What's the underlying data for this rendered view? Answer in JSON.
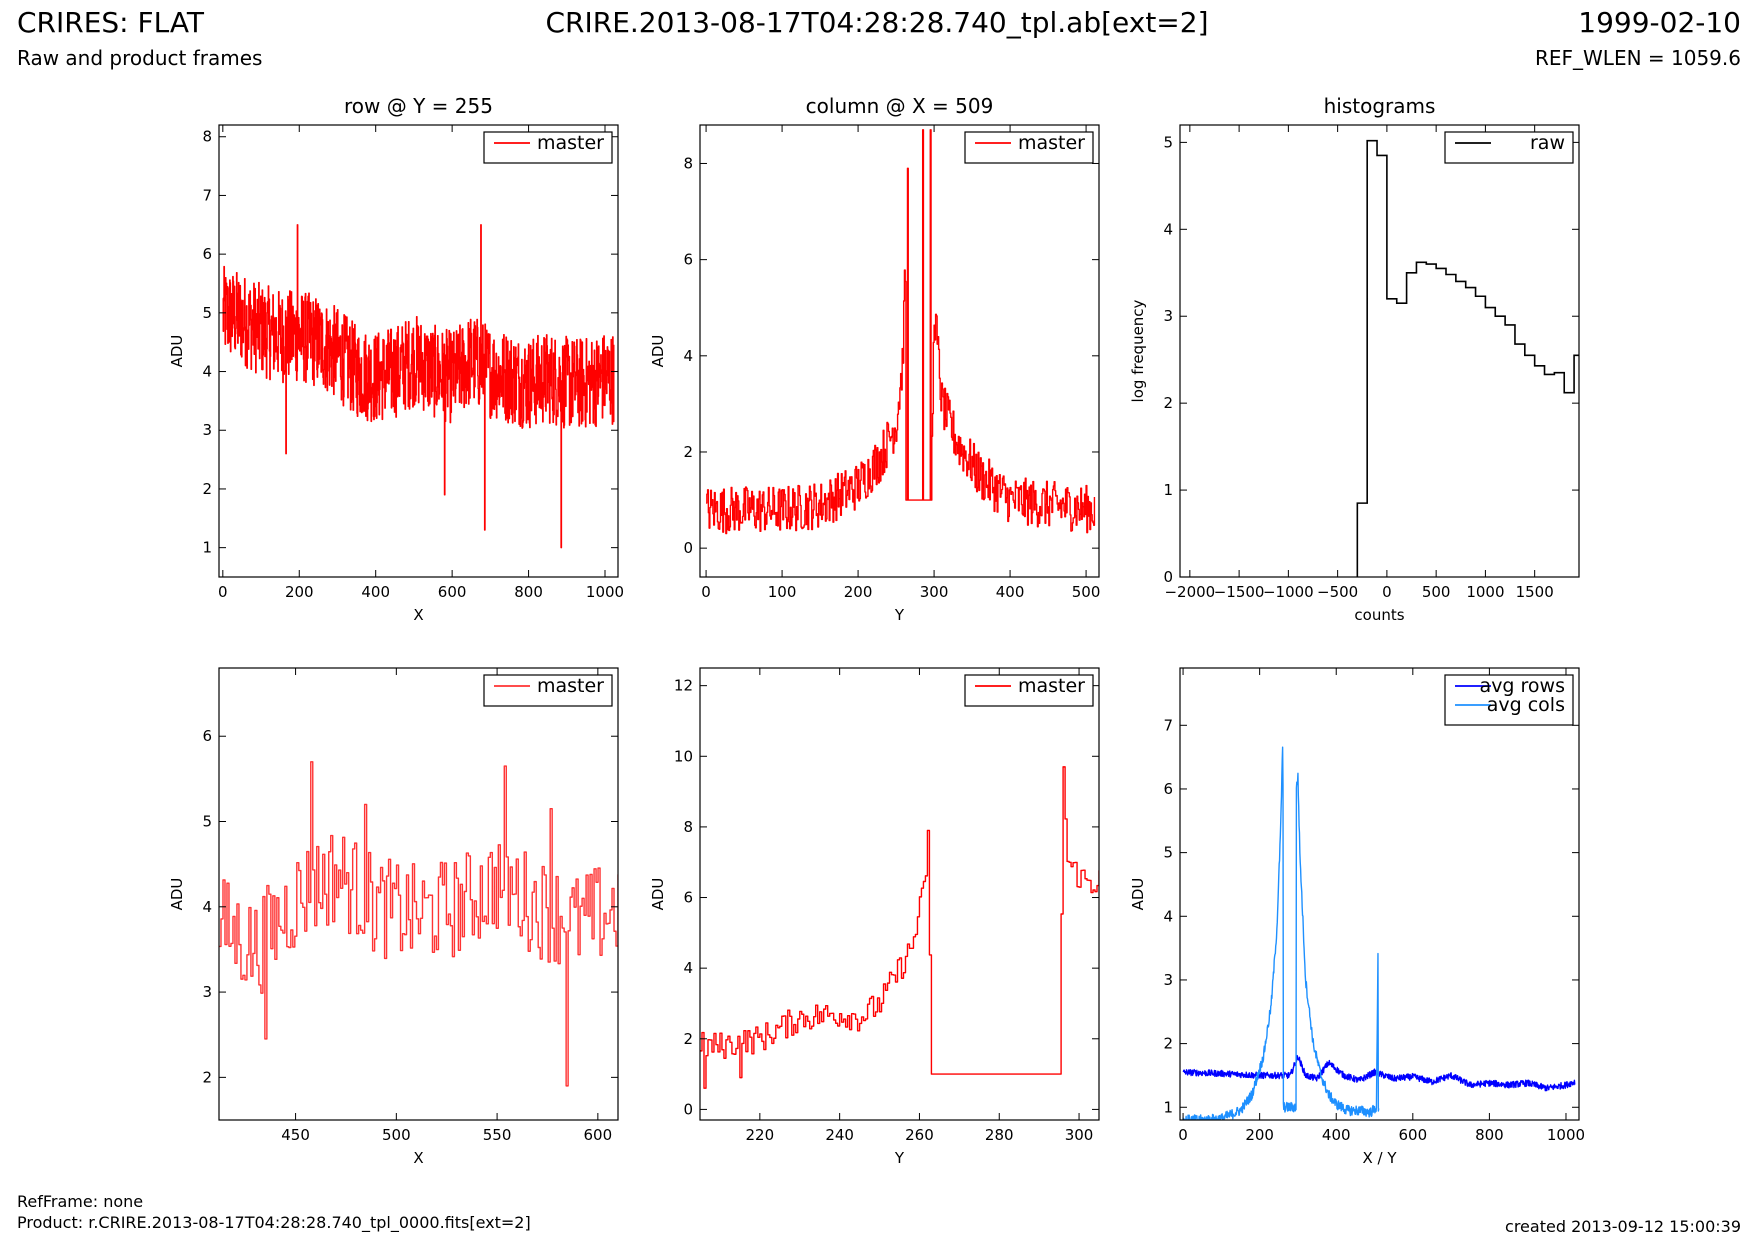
{
  "header": {
    "title_left": "CRIRES: FLAT",
    "subtitle_left": "Raw and product frames",
    "title_center": "CRIRE.2013-08-17T04:28:28.740_tpl.ab[ext=2]",
    "title_right": "1999-02-10",
    "subtitle_right": "REF_WLEN = 1059.6"
  },
  "footer": {
    "ref_frame": "RefFrame: none",
    "product": "Product: r.CRIRE.2013-08-17T04:28:28.740_tpl_0000.fits[ext=2]",
    "created": "created 2013-09-12 15:00:39"
  },
  "colors": {
    "red": "#ff0000",
    "light_red": "#ff3333",
    "blue": "#0000ff",
    "light_blue": "#1e90ff",
    "black": "#000000"
  },
  "chart_data": [
    {
      "type": "line",
      "step": true,
      "noise": true,
      "title": "row @ Y = 255",
      "xlabel": "X",
      "ylabel": "ADU",
      "xlim": [
        -10,
        1034
      ],
      "ylim": [
        0.5,
        8.2
      ],
      "xticks": [
        0,
        200,
        400,
        600,
        800,
        1000
      ],
      "yticks": [
        1,
        2,
        3,
        4,
        5,
        6,
        7,
        8
      ],
      "legend": {
        "position": "top-right"
      },
      "series": [
        {
          "name": "master",
          "color": "#ff0000",
          "x": [
            0,
            50,
            100,
            150,
            200,
            250,
            300,
            350,
            400,
            450,
            500,
            550,
            600,
            650,
            700,
            750,
            800,
            850,
            900,
            950,
            1000,
            1023
          ],
          "y": [
            5.0,
            4.9,
            4.7,
            4.6,
            4.6,
            4.5,
            4.3,
            4.0,
            3.9,
            4.0,
            4.2,
            4.0,
            3.9,
            4.2,
            4.0,
            3.9,
            3.8,
            3.9,
            3.8,
            3.8,
            3.9,
            3.9
          ],
          "amplitude": 0.8,
          "extremes": [
            [
              195,
              6.5
            ],
            [
              675,
              6.5
            ],
            [
              685,
              1.3
            ],
            [
              885,
              1.0
            ],
            [
              580,
              1.9
            ],
            [
              165,
              2.6
            ]
          ]
        }
      ]
    },
    {
      "type": "line",
      "step": true,
      "noise": true,
      "title": "column @ X = 509",
      "xlabel": "Y",
      "ylabel": "ADU",
      "xlim": [
        -8,
        517
      ],
      "ylim": [
        -0.6,
        8.8
      ],
      "xticks": [
        0,
        100,
        200,
        300,
        400,
        500
      ],
      "yticks": [
        0,
        2,
        4,
        6,
        8
      ],
      "legend": {
        "position": "top-right"
      },
      "series": [
        {
          "name": "master",
          "color": "#ff0000",
          "x": [
            0,
            50,
            100,
            150,
            200,
            230,
            250,
            258,
            262,
            263,
            296,
            300,
            310,
            330,
            360,
            400,
            450,
            511
          ],
          "y": [
            0.8,
            0.8,
            0.8,
            0.9,
            1.3,
            1.9,
            2.6,
            3.8,
            5.8,
            1.0,
            1.0,
            5.0,
            3.0,
            2.2,
            1.5,
            1.0,
            0.9,
            0.8
          ],
          "amplitude": 0.5,
          "flat": [
            [
              263,
              296,
              1.0
            ]
          ],
          "extremes": [
            [
              265,
              7.9
            ],
            [
              295,
              8.7
            ],
            [
              285,
              8.7
            ]
          ]
        }
      ]
    },
    {
      "type": "histogram",
      "step": true,
      "title": "histograms",
      "xlabel": "counts",
      "ylabel": "log frequency",
      "xlim": [
        -2100,
        1950
      ],
      "ylim": [
        0,
        5.2
      ],
      "xticks": [
        -2000,
        -1500,
        -1000,
        -500,
        0,
        500,
        1000,
        1500
      ],
      "yticks": [
        0,
        1,
        2,
        3,
        4,
        5
      ],
      "legend": {
        "position": "top-right"
      },
      "series": [
        {
          "name": "raw",
          "color": "#000000",
          "edges": [
            -300,
            -200,
            -100,
            0,
            100,
            200,
            300,
            400,
            500,
            600,
            700,
            800,
            900,
            1000,
            1100,
            1200,
            1300,
            1400,
            1500,
            1600,
            1700,
            1800,
            1900
          ],
          "values": [
            0.85,
            5.02,
            4.85,
            3.2,
            3.15,
            3.5,
            3.62,
            3.6,
            3.55,
            3.48,
            3.4,
            3.33,
            3.23,
            3.1,
            3.0,
            2.9,
            2.68,
            2.55,
            2.43,
            2.33,
            2.35,
            2.12,
            2.55
          ]
        }
      ]
    },
    {
      "type": "line",
      "step": true,
      "noise": true,
      "title": "",
      "xlabel": "X",
      "ylabel": "ADU",
      "xlim": [
        412,
        610
      ],
      "ylim": [
        1.5,
        6.8
      ],
      "xticks": [
        450,
        500,
        550,
        600
      ],
      "yticks": [
        2,
        3,
        4,
        5,
        6
      ],
      "legend": {
        "position": "top-right"
      },
      "series": [
        {
          "name": "master",
          "color": "#ff3333",
          "x": [
            412,
            430,
            450,
            470,
            490,
            510,
            530,
            550,
            570,
            590,
            610
          ],
          "y": [
            3.8,
            3.5,
            4.1,
            4.4,
            4.0,
            3.9,
            4.0,
            4.3,
            4.0,
            3.8,
            4.0
          ],
          "amplitude": 0.6,
          "extremes": [
            [
              458,
              5.7
            ],
            [
              435,
              2.45
            ],
            [
              554,
              5.65
            ],
            [
              584,
              1.9
            ],
            [
              484,
              5.2
            ],
            [
              576,
              5.15
            ]
          ]
        }
      ]
    },
    {
      "type": "line",
      "step": true,
      "noise": true,
      "title": "",
      "xlabel": "Y",
      "ylabel": "ADU",
      "xlim": [
        205,
        305
      ],
      "ylim": [
        -0.3,
        12.5
      ],
      "xticks": [
        220,
        240,
        260,
        280,
        300
      ],
      "yticks": [
        0,
        2,
        4,
        6,
        8,
        10,
        12
      ],
      "legend": {
        "position": "top-right"
      },
      "series": [
        {
          "name": "master",
          "color": "#ff0000",
          "x": [
            205,
            210,
            220,
            230,
            240,
            245,
            250,
            255,
            258,
            261,
            262,
            263,
            295,
            296,
            297,
            300,
            303,
            305
          ],
          "y": [
            1.8,
            1.8,
            2.0,
            2.6,
            2.7,
            2.6,
            3.0,
            4.0,
            4.6,
            6.2,
            7.5,
            1.0,
            1.0,
            9.5,
            7.0,
            6.6,
            6.4,
            6.5
          ],
          "amplitude": 0.4,
          "flat": [
            [
              263,
              295,
              1.0
            ]
          ],
          "extremes": [
            [
              206,
              0.6
            ],
            [
              262,
              7.9
            ],
            [
              296,
              9.7
            ],
            [
              215,
              0.9
            ]
          ]
        }
      ]
    },
    {
      "type": "line",
      "noise": true,
      "title": "",
      "xlabel": "X / Y",
      "ylabel": "ADU",
      "xlim": [
        -8,
        1034
      ],
      "ylim": [
        0.8,
        7.9
      ],
      "xticks": [
        0,
        200,
        400,
        600,
        800,
        1000
      ],
      "yticks": [
        1,
        2,
        3,
        4,
        5,
        6,
        7
      ],
      "legend": {
        "position": "top-right"
      },
      "series": [
        {
          "name": "avg rows",
          "color": "#0000ff",
          "x": [
            0,
            100,
            200,
            280,
            300,
            320,
            350,
            380,
            420,
            460,
            500,
            550,
            600,
            650,
            700,
            750,
            800,
            850,
            900,
            950,
            1000,
            1023
          ],
          "y": [
            1.55,
            1.53,
            1.5,
            1.5,
            1.8,
            1.5,
            1.45,
            1.7,
            1.5,
            1.42,
            1.55,
            1.45,
            1.48,
            1.4,
            1.5,
            1.35,
            1.38,
            1.35,
            1.38,
            1.3,
            1.35,
            1.4
          ],
          "amplitude": 0.05
        },
        {
          "name": "avg cols",
          "color": "#1e90ff",
          "x": [
            0,
            50,
            100,
            150,
            180,
            210,
            230,
            245,
            255,
            260,
            261,
            262,
            295,
            296,
            300,
            305,
            320,
            340,
            360,
            380,
            400,
            430,
            460,
            490,
            505,
            509,
            510,
            511
          ],
          "y": [
            0.8,
            0.8,
            0.82,
            0.95,
            1.2,
            1.8,
            2.6,
            3.8,
            5.4,
            6.7,
            6.0,
            1.0,
            1.0,
            6.0,
            6.2,
            5.0,
            3.0,
            2.0,
            1.5,
            1.2,
            1.05,
            0.95,
            0.95,
            0.92,
            1.0,
            3.35,
            1.0,
            1.0
          ],
          "amplitude": 0.08
        }
      ]
    }
  ]
}
